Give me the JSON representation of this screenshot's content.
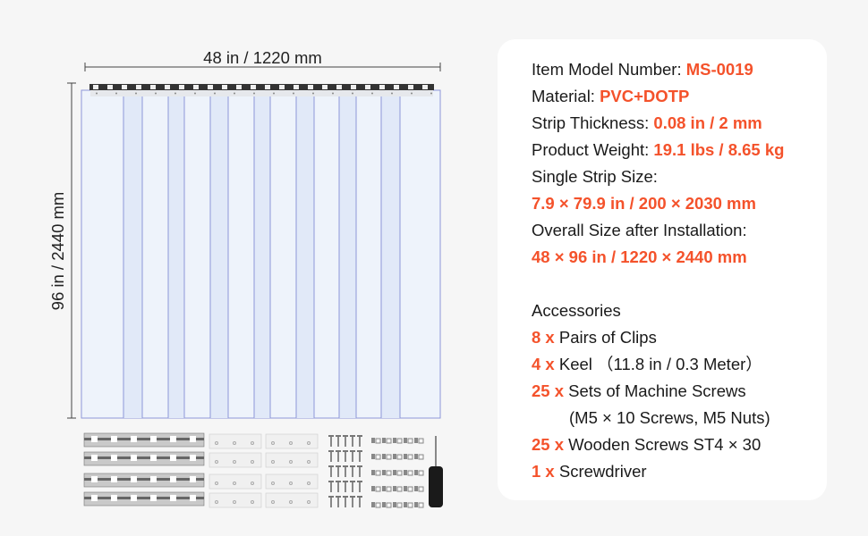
{
  "dimensions": {
    "width_label": "48 in / 1220 mm",
    "height_label": "96 in / 2440 mm"
  },
  "specs": [
    {
      "label": "Item Model Number: ",
      "value": "MS-0019"
    },
    {
      "label": "Material: ",
      "value": "PVC+DOTP"
    },
    {
      "label": "Strip Thickness: ",
      "value": "0.08 in / 2 mm"
    },
    {
      "label": "Product Weight: ",
      "value": "19.1 lbs / 8.65 kg"
    },
    {
      "label": "Single Strip Size:",
      "value": ""
    },
    {
      "label": "",
      "value": "7.9 × 79.9 in / 200 × 2030 mm"
    },
    {
      "label": "Overall Size after Installation:",
      "value": ""
    },
    {
      "label": "",
      "value": "48 × 96 in / 1220 × 2440 mm"
    }
  ],
  "accessories": {
    "title": "Accessories",
    "items": [
      {
        "qty": "8 x ",
        "text": "Pairs of Clips"
      },
      {
        "qty": "4 x ",
        "text": "Keel （11.8 in / 0.3 Meter）"
      },
      {
        "qty": "25 x ",
        "text": "Sets of Machine Screws"
      },
      {
        "qty": "",
        "text": "(M5 × 10 Screws, M5 Nuts)"
      },
      {
        "qty": "25 x ",
        "text": "Wooden Screws ST4 × 30"
      },
      {
        "qty": "1 x ",
        "text": "Screwdriver"
      }
    ]
  },
  "colors": {
    "accent": "#f4522b",
    "strip_fill": "#eef3fb",
    "strip_overlap": "#e1e9f8",
    "strip_edge": "#8d97d8"
  }
}
